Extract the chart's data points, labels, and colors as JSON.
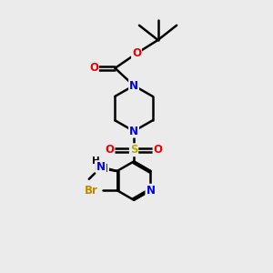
{
  "background_color": "#ebebeb",
  "figsize": [
    3.0,
    3.0
  ],
  "dpi": 100,
  "colors": {
    "C": "#000000",
    "N": "#0000ee",
    "O": "#ee0000",
    "S": "#bbaa00",
    "Br": "#bb8800",
    "bond": "#000000"
  },
  "bond_width": 1.8,
  "font_size_atom": 8.5
}
